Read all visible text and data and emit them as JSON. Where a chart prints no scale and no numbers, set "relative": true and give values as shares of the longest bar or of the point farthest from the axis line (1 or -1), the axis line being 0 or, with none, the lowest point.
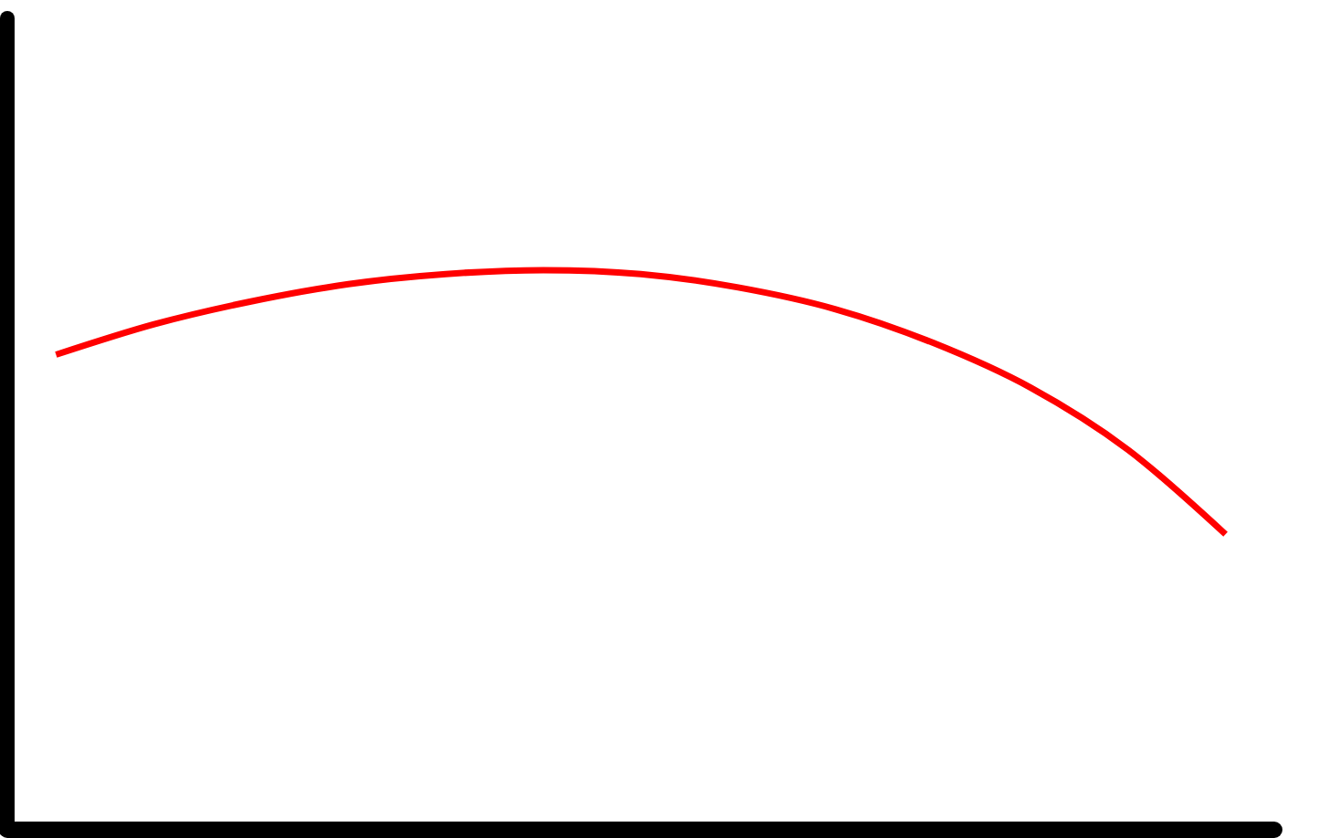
{
  "chart_data": {
    "type": "line",
    "relative": true,
    "categories": [
      null,
      null,
      null,
      null,
      null,
      null,
      null,
      null,
      null,
      null,
      null,
      null,
      null
    ],
    "series": [
      {
        "color": "#ff0000",
        "values": [
          0.849,
          0.903,
          0.944,
          0.975,
          0.993,
          1,
          0.993,
          0.969,
          0.93,
          0.87,
          0.79,
          0.679,
          0.528
        ]
      }
    ],
    "grid": false,
    "marker": "none",
    "line_style": "solid"
  }
}
